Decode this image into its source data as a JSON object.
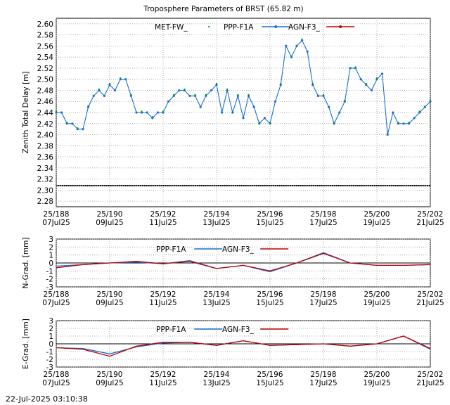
{
  "title": "Troposphere Parameters of BRST (65.82 m)",
  "timestamp": "22-Jul-2025 03:10:38",
  "colors": {
    "met": "#00a000",
    "ppp": "#1a6fd6",
    "agn": "#c00000",
    "ztd_black": "#000000"
  },
  "x_ticks": [
    {
      "t": 0,
      "top": "25/188",
      "bottom": "07Jul25"
    },
    {
      "t": 2,
      "top": "25/190",
      "bottom": "09Jul25"
    },
    {
      "t": 4,
      "top": "25/192",
      "bottom": "11Jul25"
    },
    {
      "t": 6,
      "top": "25/194",
      "bottom": "13Jul25"
    },
    {
      "t": 8,
      "top": "25/196",
      "bottom": "15Jul25"
    },
    {
      "t": 10,
      "top": "25/198",
      "bottom": "17Jul25"
    },
    {
      "t": 12,
      "top": "25/200",
      "bottom": "19Jul25"
    },
    {
      "t": 14,
      "top": "25/202",
      "bottom": "21Jul25"
    }
  ],
  "chart_data": [
    {
      "type": "line",
      "ylabel": "Zenith Total Delay [m]",
      "xlim": [
        0,
        14
      ],
      "ylim": [
        2.27,
        2.61
      ],
      "y_ticks": [
        2.28,
        2.3,
        2.32,
        2.34,
        2.36,
        2.38,
        2.4,
        2.42,
        2.44,
        2.46,
        2.48,
        2.5,
        2.52,
        2.54,
        2.56,
        2.58,
        2.6
      ],
      "legend": [
        "MET-FW_",
        "PPP-F1A",
        "AGN-F3_"
      ],
      "series": [
        {
          "name": "PPP-F1A",
          "x": [
            0.0,
            0.2,
            0.4,
            0.6,
            0.8,
            1.0,
            1.2,
            1.4,
            1.6,
            1.8,
            2.0,
            2.2,
            2.4,
            2.6,
            2.8,
            3.0,
            3.2,
            3.4,
            3.6,
            3.8,
            4.0,
            4.2,
            4.4,
            4.6,
            4.8,
            5.0,
            5.2,
            5.4,
            5.6,
            5.8,
            6.0,
            6.2,
            6.4,
            6.6,
            6.8,
            7.0,
            7.2,
            7.4,
            7.6,
            7.8,
            8.0,
            8.2,
            8.4,
            8.6,
            8.8,
            9.0,
            9.2,
            9.4,
            9.6,
            9.8,
            10.0,
            10.2,
            10.4,
            10.6,
            10.8,
            11.0,
            11.2,
            11.4,
            11.6,
            11.8,
            12.0,
            12.2,
            12.4,
            12.6,
            12.8,
            13.0,
            13.2,
            13.4,
            13.6,
            13.8,
            14.0
          ],
          "values": [
            2.44,
            2.44,
            2.42,
            2.42,
            2.41,
            2.41,
            2.45,
            2.47,
            2.48,
            2.47,
            2.49,
            2.48,
            2.5,
            2.5,
            2.47,
            2.44,
            2.44,
            2.44,
            2.43,
            2.44,
            2.44,
            2.46,
            2.47,
            2.48,
            2.48,
            2.47,
            2.47,
            2.45,
            2.47,
            2.48,
            2.49,
            2.44,
            2.48,
            2.44,
            2.47,
            2.43,
            2.47,
            2.45,
            2.42,
            2.43,
            2.42,
            2.46,
            2.49,
            2.56,
            2.54,
            2.56,
            2.57,
            2.55,
            2.49,
            2.47,
            2.47,
            2.45,
            2.42,
            2.44,
            2.46,
            2.52,
            2.52,
            2.5,
            2.49,
            2.48,
            2.5,
            2.51,
            2.4,
            2.44,
            2.42,
            2.42,
            2.42,
            2.43,
            2.44,
            2.45,
            2.46
          ]
        },
        {
          "name": "AGN-F3_",
          "x": [
            0,
            14
          ],
          "values": [
            2.308,
            2.308
          ]
        }
      ]
    },
    {
      "type": "line",
      "ylabel": "N-Grad. [mm]",
      "xlim": [
        0,
        14
      ],
      "ylim": [
        -3,
        3
      ],
      "y_ticks": [
        -3,
        -2,
        -1,
        0,
        1,
        2,
        3
      ],
      "legend": [
        "PPP-F1A",
        "AGN-F3_"
      ],
      "series": [
        {
          "name": "PPP-F1A",
          "x": [
            0,
            1,
            2,
            3,
            4,
            5,
            6,
            7,
            8,
            9,
            10,
            11,
            12,
            13,
            14
          ],
          "values": [
            -0.4,
            -0.2,
            0.0,
            0.1,
            -0.1,
            0.3,
            -0.7,
            -0.3,
            -1.1,
            0.0,
            1.3,
            0.0,
            -0.3,
            -0.3,
            -0.2
          ]
        },
        {
          "name": "AGN-F3_",
          "x": [
            0,
            1,
            2,
            3,
            4,
            5,
            6,
            7,
            8,
            9,
            10,
            11,
            12,
            13,
            14
          ],
          "values": [
            -0.6,
            -0.2,
            0.0,
            0.2,
            -0.1,
            0.2,
            -0.7,
            -0.3,
            -1.0,
            0.0,
            1.2,
            0.0,
            -0.3,
            -0.3,
            -0.2
          ]
        }
      ]
    },
    {
      "type": "line",
      "ylabel": "E-Grad. [mm]",
      "xlim": [
        0,
        14
      ],
      "ylim": [
        -3,
        3
      ],
      "y_ticks": [
        -3,
        -2,
        -1,
        0,
        1,
        2,
        3
      ],
      "legend": [
        "PPP-F1A",
        "AGN-F3_"
      ],
      "series": [
        {
          "name": "PPP-F1A",
          "x": [
            0,
            1,
            2,
            3,
            4,
            5,
            6,
            7,
            8,
            9,
            10,
            11,
            12,
            13,
            14
          ],
          "values": [
            -0.5,
            -0.6,
            -1.3,
            -0.4,
            0.1,
            0.2,
            -0.2,
            0.4,
            -0.2,
            -0.1,
            0.0,
            -0.3,
            0.0,
            1.0,
            -0.7
          ]
        },
        {
          "name": "AGN-F3_",
          "x": [
            0,
            1,
            2,
            3,
            4,
            5,
            6,
            7,
            8,
            9,
            10,
            11,
            12,
            13,
            14
          ],
          "values": [
            -0.5,
            -0.7,
            -1.6,
            -0.3,
            0.2,
            0.2,
            -0.2,
            0.4,
            -0.2,
            -0.1,
            0.0,
            -0.3,
            0.0,
            1.0,
            -0.6
          ]
        }
      ]
    }
  ]
}
